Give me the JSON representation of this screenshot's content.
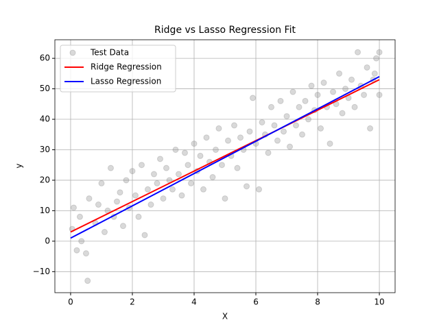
{
  "chart_data": {
    "type": "scatter",
    "title": "Ridge vs Lasso Regression Fit",
    "x_label": "X",
    "y_label": "y",
    "xlim": [
      -0.51,
      10.51
    ],
    "ylim": [
      -16.9,
      66.1
    ],
    "xticks": [
      0,
      2,
      4,
      6,
      8,
      10
    ],
    "yticks": [
      {
        "value": -10,
        "label": "−10"
      },
      0,
      10,
      20,
      30,
      40,
      50,
      60
    ],
    "grid": true,
    "legend": "upper left",
    "series": [
      {
        "name": "Test Data",
        "kind": "scatter",
        "color": "#808080",
        "x": [
          0.05,
          0.1,
          0.2,
          0.3,
          0.35,
          0.5,
          0.55,
          0.6,
          0.8,
          0.9,
          1.0,
          1.1,
          1.2,
          1.3,
          1.4,
          1.5,
          1.6,
          1.7,
          1.8,
          1.9,
          2.0,
          2.1,
          2.2,
          2.3,
          2.4,
          2.5,
          2.6,
          2.7,
          2.8,
          2.9,
          3.0,
          3.1,
          3.2,
          3.3,
          3.4,
          3.5,
          3.6,
          3.7,
          3.8,
          3.9,
          4.0,
          4.1,
          4.2,
          4.3,
          4.4,
          4.5,
          4.6,
          4.7,
          4.8,
          4.9,
          5.0,
          5.1,
          5.2,
          5.3,
          5.4,
          5.5,
          5.6,
          5.7,
          5.8,
          5.9,
          6.0,
          6.1,
          6.2,
          6.3,
          6.4,
          6.5,
          6.6,
          6.7,
          6.8,
          6.9,
          7.0,
          7.1,
          7.2,
          7.3,
          7.4,
          7.5,
          7.6,
          7.7,
          7.8,
          7.9,
          8.0,
          8.1,
          8.2,
          8.3,
          8.4,
          8.5,
          8.6,
          8.7,
          8.8,
          8.9,
          9.0,
          9.1,
          9.2,
          9.3,
          9.4,
          9.5,
          9.6,
          9.7,
          9.8,
          9.9,
          10.0,
          10.0,
          9.85
        ],
        "values": [
          4,
          11,
          -3,
          8,
          0,
          -4,
          -13,
          14,
          6,
          12,
          19,
          3,
          10,
          24,
          8,
          13,
          16,
          5,
          20,
          11,
          23,
          15,
          8,
          25,
          2,
          17,
          12,
          22,
          19,
          27,
          14,
          24,
          20,
          17,
          30,
          22,
          15,
          29,
          25,
          19,
          32,
          23,
          28,
          17,
          34,
          26,
          21,
          30,
          37,
          25,
          14,
          33,
          28,
          38,
          24,
          34,
          30,
          18,
          36,
          47,
          32,
          17,
          39,
          35,
          29,
          44,
          38,
          33,
          46,
          36,
          41,
          31,
          49,
          38,
          44,
          35,
          46,
          40,
          51,
          43,
          48,
          37,
          52,
          44,
          32,
          49,
          45,
          55,
          42,
          50,
          47,
          53,
          44,
          62,
          51,
          48,
          57,
          37,
          53,
          60,
          48,
          62,
          55
        ]
      },
      {
        "name": "Ridge Regression",
        "kind": "line",
        "color": "#ff0000",
        "x": [
          0,
          10
        ],
        "values": [
          3,
          53
        ]
      },
      {
        "name": "Lasso Regression",
        "kind": "line",
        "color": "#0000ff",
        "x": [
          0,
          10
        ],
        "values": [
          1,
          54
        ]
      }
    ]
  }
}
